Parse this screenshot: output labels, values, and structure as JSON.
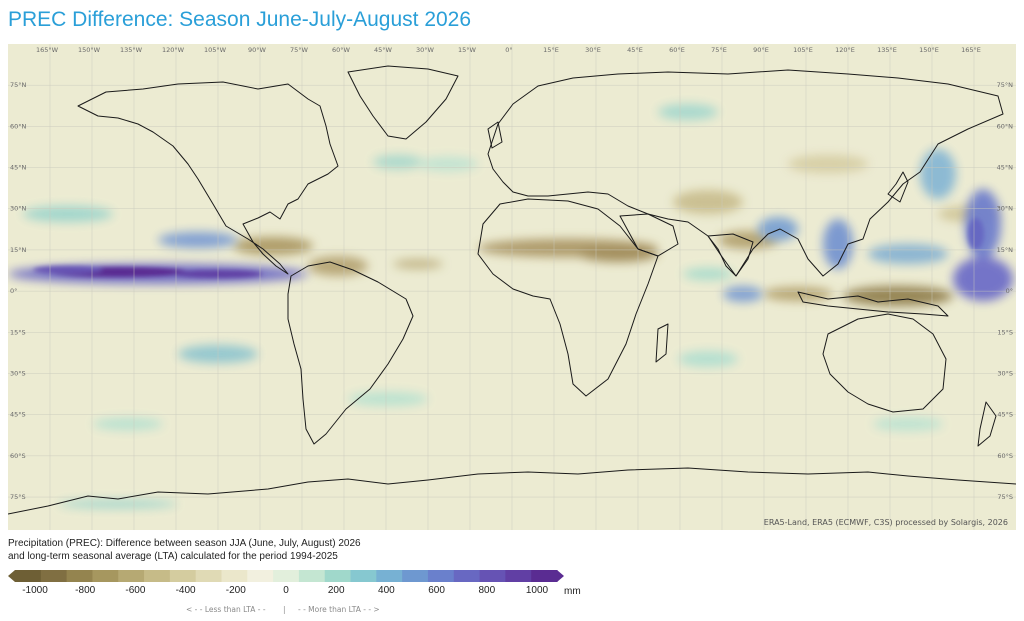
{
  "page": {
    "title": "PREC Difference: Season June-July-August 2026",
    "description_line1": "Precipitation (PREC): Difference between season JJA (June, July, August) 2026",
    "description_line2": "and long-term seasonal average (LTA) calculated for the period 1994-2025",
    "credit": "ERA5-Land, ERA5 (ECMWF, C3S) processed by Solargis, 2026"
  },
  "map": {
    "projection": "equirectangular",
    "longitude_labels": [
      "165°W",
      "150°W",
      "135°W",
      "120°W",
      "105°W",
      "90°W",
      "75°W",
      "60°W",
      "45°W",
      "30°W",
      "15°W",
      "0°",
      "15°E",
      "30°E",
      "45°E",
      "60°E",
      "75°E",
      "90°E",
      "105°E",
      "120°E",
      "135°E",
      "150°E",
      "165°E"
    ],
    "longitude_values": [
      -165,
      -150,
      -135,
      -120,
      -105,
      -90,
      -75,
      -60,
      -45,
      -30,
      -15,
      0,
      15,
      30,
      45,
      60,
      75,
      90,
      105,
      120,
      135,
      150,
      165
    ],
    "latitude_labels": [
      "75°N",
      "60°N",
      "45°N",
      "30°N",
      "15°N",
      "0°",
      "15°S",
      "30°S",
      "45°S",
      "60°S",
      "75°S"
    ],
    "latitude_values": [
      75,
      60,
      45,
      30,
      15,
      0,
      -15,
      -30,
      -45,
      -60,
      -75
    ],
    "lat_range": [
      -87,
      90
    ],
    "lon_range": [
      -180,
      180
    ]
  },
  "legend": {
    "unit": "mm",
    "tick_labels": [
      "-1000",
      "-800",
      "-600",
      "-400",
      "-200",
      "0",
      "200",
      "400",
      "600",
      "800",
      "1000"
    ],
    "min": -1000,
    "max": 1000,
    "colors": [
      "#6e5f35",
      "#806f42",
      "#94844f",
      "#a6975f",
      "#b6a973",
      "#c6bb88",
      "#d4cc9f",
      "#e0dab5",
      "#ebe7cb",
      "#f2f0df",
      "#e2efdc",
      "#c4e6d2",
      "#a0d8cb",
      "#86c8d0",
      "#77b1d3",
      "#6e98d0",
      "#6a80cc",
      "#6868c2",
      "#6653b4",
      "#613fa4",
      "#5a2c92"
    ],
    "less_hint": "< - -  Less than LTA  - -",
    "separator": "|",
    "more_hint": "- -  More than LTA  - - >"
  }
}
